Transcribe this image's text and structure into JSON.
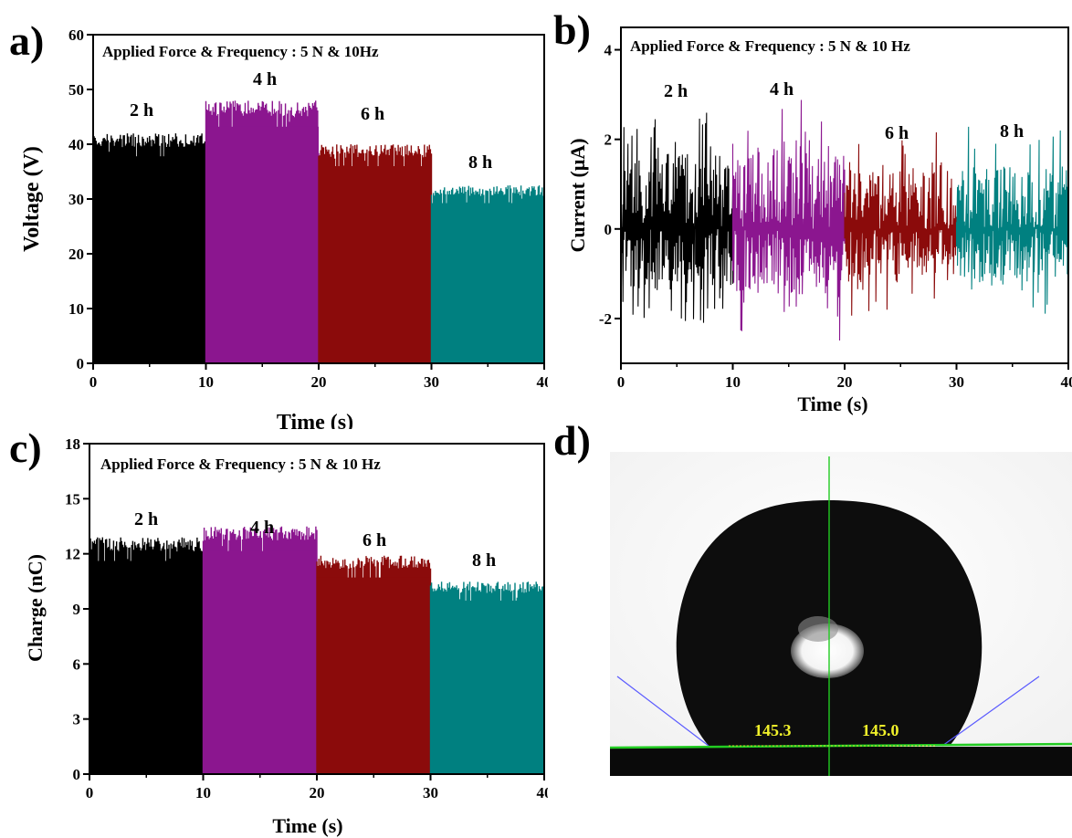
{
  "panels": {
    "a": "a)",
    "b": "b)",
    "c": "c)",
    "d": "d)"
  },
  "chart_data": [
    {
      "id": "a",
      "type": "bar",
      "annotation": "Applied Force & Frequency : 5 N & 10Hz",
      "xlabel": "Time (s)",
      "ylabel": "Voltage (V)",
      "xlim": [
        0,
        40
      ],
      "ylim": [
        0,
        60
      ],
      "xticks": [
        0,
        10,
        20,
        30,
        40
      ],
      "yticks": [
        0,
        10,
        20,
        30,
        40,
        50,
        60
      ],
      "grid": false,
      "series": [
        {
          "label": "2 h",
          "x_range": [
            0,
            10
          ],
          "min": 0,
          "max": 42,
          "color": "#000000"
        },
        {
          "label": "4 h",
          "x_range": [
            10,
            20
          ],
          "min": 0,
          "max": 48,
          "color": "#8b168f"
        },
        {
          "label": "6 h",
          "x_range": [
            20,
            30
          ],
          "min": 0,
          "max": 40,
          "color": "#8b0b0b"
        },
        {
          "label": "8 h",
          "x_range": [
            30,
            40
          ],
          "min": 0,
          "max": 32.5,
          "color": "#008080"
        }
      ]
    },
    {
      "id": "b",
      "type": "line",
      "annotation": "Applied Force & Frequency : 5 N & 10 Hz",
      "xlabel": "Time (s)",
      "ylabel": "Current (μA)",
      "xlim": [
        0,
        40
      ],
      "ylim": [
        -3,
        4.5
      ],
      "xticks": [
        0,
        10,
        20,
        30,
        40
      ],
      "yticks": [
        -2,
        0,
        2,
        4
      ],
      "grid": false,
      "series": [
        {
          "label": "2 h",
          "x_range": [
            0,
            10
          ],
          "min": -2.3,
          "max": 2.9,
          "color": "#000000"
        },
        {
          "label": "4 h",
          "x_range": [
            10,
            20
          ],
          "min": -2.5,
          "max": 3.1,
          "color": "#8b168f"
        },
        {
          "label": "6 h",
          "x_range": [
            20,
            30
          ],
          "min": -2.0,
          "max": 2.2,
          "color": "#8b0b0b"
        },
        {
          "label": "8 h",
          "x_range": [
            30,
            40
          ],
          "min": -2.0,
          "max": 2.3,
          "color": "#008080"
        }
      ]
    },
    {
      "id": "c",
      "type": "bar",
      "annotation": "Applied Force & Frequency : 5 N & 10 Hz",
      "xlabel": "Time (s)",
      "ylabel": "Charge (nC)",
      "xlim": [
        0,
        40
      ],
      "ylim": [
        0,
        18
      ],
      "xticks": [
        0,
        10,
        20,
        30,
        40
      ],
      "yticks": [
        0,
        3,
        6,
        9,
        12,
        15,
        18
      ],
      "grid": false,
      "series": [
        {
          "label": "2 h",
          "x_range": [
            0,
            10
          ],
          "min": 0,
          "max": 12.9,
          "color": "#000000"
        },
        {
          "label": "4 h",
          "x_range": [
            10,
            20
          ],
          "min": 0,
          "max": 13.5,
          "color": "#8b168f"
        },
        {
          "label": "6 h",
          "x_range": [
            20,
            30
          ],
          "min": 0,
          "max": 11.9,
          "color": "#8b0b0b"
        },
        {
          "label": "8 h",
          "x_range": [
            30,
            40
          ],
          "min": 0,
          "max": 10.5,
          "color": "#008080"
        }
      ]
    }
  ],
  "photo": {
    "left_angle": "145.3",
    "right_angle": "145.0",
    "angle_color": "#f2f22a",
    "line_color": "#22cc22",
    "tangent_color": "#5a5aff"
  }
}
